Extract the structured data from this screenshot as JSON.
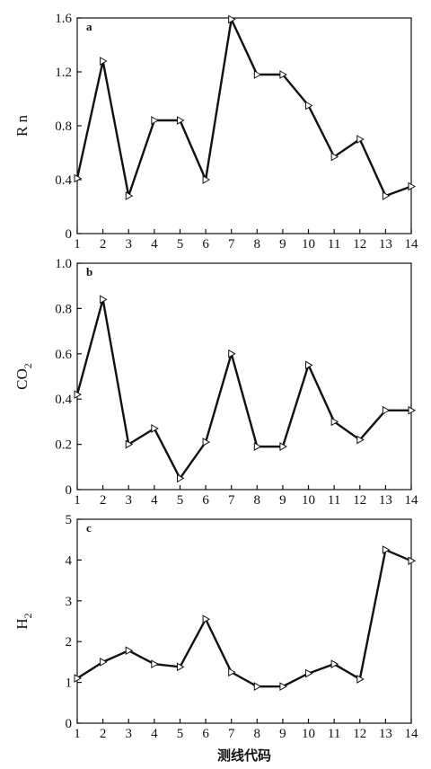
{
  "chart_data": [
    {
      "type": "line",
      "panel_label": "a",
      "ylabel": "R n",
      "ylim": [
        0,
        1.6
      ],
      "yticks": [
        "0",
        "0.4",
        "0.8",
        "1.2",
        "1.6"
      ],
      "xticks": [
        "1",
        "2",
        "3",
        "4",
        "5",
        "6",
        "7",
        "8",
        "9",
        "10",
        "11",
        "12",
        "13",
        "14"
      ],
      "x": [
        1,
        2,
        3,
        4,
        5,
        6,
        7,
        8,
        9,
        10,
        11,
        12,
        13,
        14
      ],
      "series": [
        {
          "values": [
            0.41,
            1.28,
            0.28,
            0.84,
            0.84,
            0.4,
            1.59,
            1.18,
            1.18,
            0.95,
            0.57,
            0.7,
            0.28,
            0.35
          ]
        }
      ],
      "marker": "triangle-right",
      "grid": false
    },
    {
      "type": "line",
      "panel_label": "b",
      "ylabel": "CO",
      "ylabel_sub": "2",
      "ylim": [
        0,
        1.0
      ],
      "yticks": [
        "0",
        "0.2",
        "0.4",
        "0.6",
        "0.8",
        "1.0"
      ],
      "xticks": [
        "1",
        "2",
        "3",
        "4",
        "5",
        "6",
        "7",
        "8",
        "9",
        "10",
        "11",
        "12",
        "13",
        "14"
      ],
      "x": [
        1,
        2,
        3,
        4,
        5,
        6,
        7,
        8,
        9,
        10,
        11,
        12,
        13,
        14
      ],
      "series": [
        {
          "values": [
            0.42,
            0.84,
            0.2,
            0.27,
            0.05,
            0.21,
            0.6,
            0.19,
            0.19,
            0.55,
            0.3,
            0.22,
            0.35,
            0.35
          ]
        }
      ],
      "marker": "triangle-right",
      "grid": false
    },
    {
      "type": "line",
      "panel_label": "c",
      "ylabel": "H",
      "ylabel_sub": "2",
      "ylim": [
        0,
        5
      ],
      "yticks": [
        "0",
        "1",
        "2",
        "3",
        "4",
        "5"
      ],
      "xticks": [
        "1",
        "2",
        "3",
        "4",
        "5",
        "6",
        "7",
        "8",
        "9",
        "10",
        "11",
        "12",
        "13",
        "14"
      ],
      "x": [
        1,
        2,
        3,
        4,
        5,
        6,
        7,
        8,
        9,
        10,
        11,
        12,
        13,
        14
      ],
      "series": [
        {
          "values": [
            1.1,
            1.5,
            1.78,
            1.45,
            1.38,
            2.55,
            1.25,
            0.9,
            0.9,
            1.22,
            1.45,
            1.08,
            4.25,
            3.98
          ]
        }
      ],
      "marker": "triangle-right",
      "grid": false
    }
  ],
  "xlabel": "测线代码"
}
